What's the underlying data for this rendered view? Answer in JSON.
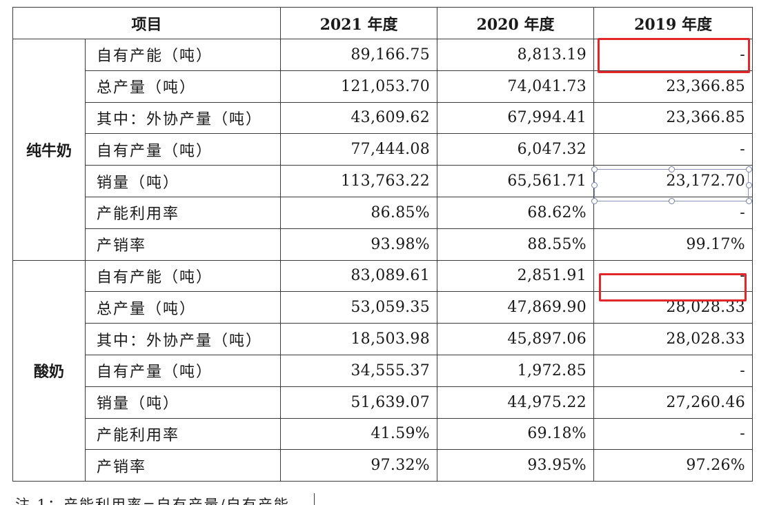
{
  "headers": {
    "item": "项目",
    "y2021": "2021 年度",
    "y2020": "2020 年度",
    "y2019": "2019 年度"
  },
  "groups": [
    {
      "name": "纯牛奶",
      "rows": [
        {
          "label": "自有产能（吨）",
          "y2021": "89,166.75",
          "y2020": "8,813.19",
          "y2019": "-"
        },
        {
          "label": "总产量（吨）",
          "y2021": "121,053.70",
          "y2020": "74,041.73",
          "y2019": "23,366.85"
        },
        {
          "label": "其中：外协产量（吨）",
          "y2021": "43,609.62",
          "y2020": "67,994.41",
          "y2019": "23,366.85"
        },
        {
          "label": "自有产量（吨）",
          "y2021": "77,444.08",
          "y2020": "6,047.32",
          "y2019": "-"
        },
        {
          "label": "销量（吨）",
          "y2021": "113,763.22",
          "y2020": "65,561.71",
          "y2019": "23,172.70"
        },
        {
          "label": "产能利用率",
          "y2021": "86.85%",
          "y2020": "68.62%",
          "y2019": "-"
        },
        {
          "label": "产销率",
          "y2021": "93.98%",
          "y2020": "88.55%",
          "y2019": "99.17%"
        }
      ]
    },
    {
      "name": "酸奶",
      "rows": [
        {
          "label": "自有产能（吨）",
          "y2021": "83,089.61",
          "y2020": "2,851.91",
          "y2019": "-"
        },
        {
          "label": "总产量（吨）",
          "y2021": "53,059.35",
          "y2020": "47,869.90",
          "y2019": "28,028.33"
        },
        {
          "label": "其中：外协产量（吨）",
          "y2021": "18,503.98",
          "y2020": "45,897.06",
          "y2019": "28,028.33"
        },
        {
          "label": "自有产量（吨）",
          "y2021": "34,555.37",
          "y2020": "1,972.85",
          "y2019": "-"
        },
        {
          "label": "销量（吨）",
          "y2021": "51,639.07",
          "y2020": "44,975.22",
          "y2019": "27,260.46"
        },
        {
          "label": "产能利用率",
          "y2021": "41.59%",
          "y2020": "69.18%",
          "y2019": "-"
        },
        {
          "label": "产销率",
          "y2021": "97.32%",
          "y2020": "93.95%",
          "y2019": "97.26%"
        }
      ]
    }
  ],
  "footnote": "注 1：产能利用率=自有产量/自有产能",
  "colors": {
    "highlight": "#e3262a",
    "border": "#3a3a3a",
    "selection": "#8a95b5"
  }
}
